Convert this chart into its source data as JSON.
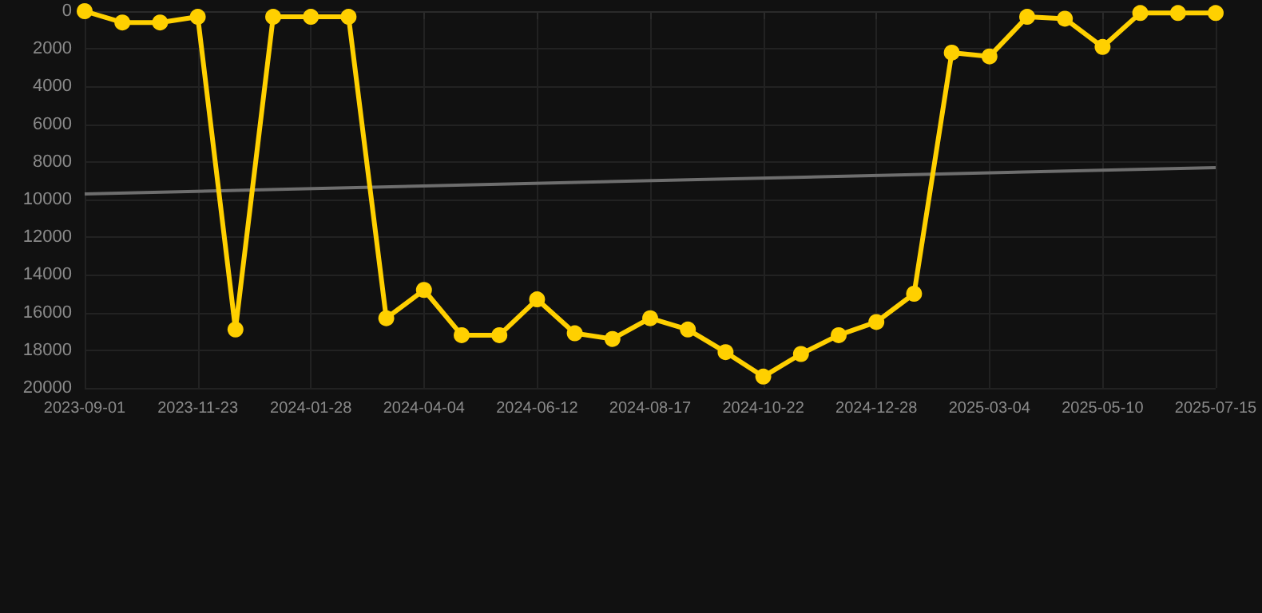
{
  "chart_data": {
    "type": "line",
    "categories": [
      "2023-09-01",
      null,
      null,
      "2023-11-23",
      null,
      null,
      "2024-01-28",
      null,
      null,
      "2024-04-04",
      null,
      null,
      "2024-06-12",
      null,
      null,
      "2024-08-17",
      null,
      null,
      "2024-10-22",
      null,
      null,
      "2024-12-28",
      null,
      null,
      "2025-03-04",
      null,
      null,
      "2025-05-10",
      null,
      null,
      "2025-07-15"
    ],
    "series": [
      {
        "color": "#ffd000",
        "marker": "circle",
        "values": [
          0,
          600,
          600,
          300,
          16900,
          300,
          300,
          300,
          16300,
          14800,
          17200,
          17200,
          15300,
          17100,
          17400,
          16300,
          16900,
          18100,
          19400,
          18200,
          17200,
          16500,
          15000,
          2200,
          2400,
          300,
          400,
          1900,
          100,
          100,
          100
        ]
      },
      {
        "color": "#6e6e6e",
        "marker": "none",
        "values": [
          9700,
          null,
          null,
          null,
          null,
          null,
          null,
          null,
          null,
          null,
          null,
          null,
          null,
          null,
          null,
          null,
          null,
          null,
          null,
          null,
          null,
          null,
          null,
          null,
          null,
          null,
          null,
          null,
          null,
          null,
          8300
        ]
      }
    ],
    "ylim": [
      20000,
      0
    ],
    "yticks": [
      0,
      2000,
      4000,
      6000,
      8000,
      10000,
      12000,
      14000,
      16000,
      18000,
      20000
    ],
    "grid": true
  }
}
